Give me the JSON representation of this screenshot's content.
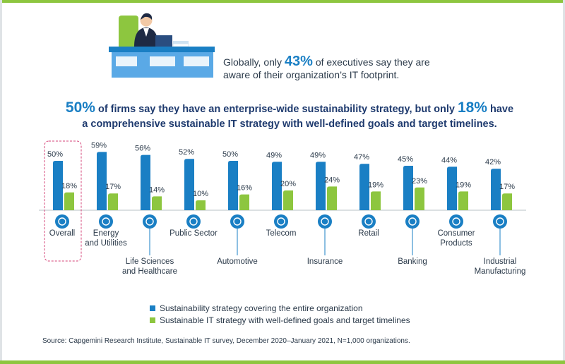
{
  "headline": {
    "prefix": "Globally, only ",
    "value": "43%",
    "suffix_line1": " of executives say they are",
    "line2": "aware of their organization’s IT footprint."
  },
  "subhead": {
    "value1": "50%",
    "text1": " of firms say they have an enterprise-wide sustainability strategy, but only ",
    "value2": "18%",
    "text2": " have",
    "line2": "a comprehensive sustainable IT strategy with well-defined goals and target timelines."
  },
  "colors": {
    "series1": "#1a7fc4",
    "series2": "#8dc63f",
    "icon": "#1a7fc4",
    "highlight": "#d6457a",
    "text": "#2b3a4a"
  },
  "chart_data": {
    "type": "bar",
    "categories": [
      {
        "lines": [
          "Overall"
        ],
        "icon": "globe-icon",
        "label_row": 0
      },
      {
        "lines": [
          "Energy",
          "and Utilities"
        ],
        "icon": "energy-icon",
        "label_row": 0
      },
      {
        "lines": [
          "Life Sciences",
          "and Healthcare"
        ],
        "icon": "dna-icon",
        "label_row": 1
      },
      {
        "lines": [
          "Public Sector"
        ],
        "icon": "government-icon",
        "label_row": 0
      },
      {
        "lines": [
          "Automotive"
        ],
        "icon": "car-icon",
        "label_row": 1
      },
      {
        "lines": [
          "Telecom"
        ],
        "icon": "satellite-icon",
        "label_row": 0
      },
      {
        "lines": [
          "Insurance"
        ],
        "icon": "hands-icon",
        "label_row": 1
      },
      {
        "lines": [
          "Retail"
        ],
        "icon": "cart-icon",
        "label_row": 0
      },
      {
        "lines": [
          "Banking"
        ],
        "icon": "bank-icon",
        "label_row": 1
      },
      {
        "lines": [
          "Consumer",
          "Products"
        ],
        "icon": "tag-icon",
        "label_row": 0
      },
      {
        "lines": [
          "Industrial",
          "Manufacturing"
        ],
        "icon": "factory-icon",
        "label_row": 1
      }
    ],
    "series": [
      {
        "name": "Sustainability strategy covering the entire organization",
        "values": [
          50,
          59,
          56,
          52,
          50,
          49,
          49,
          47,
          45,
          44,
          42
        ]
      },
      {
        "name": "Sustainable IT strategy with well-defined goals and target timelines",
        "values": [
          18,
          17,
          14,
          10,
          16,
          20,
          24,
          19,
          23,
          19,
          17
        ]
      }
    ],
    "value_suffix": "%",
    "ylim": [
      0,
      60
    ],
    "grid": false,
    "legend_position": "bottom",
    "highlight_category": 0
  },
  "source": "Source: Capgemini Research Institute, Sustainable IT survey, December 2020–January 2021, N=1,000 organizations."
}
